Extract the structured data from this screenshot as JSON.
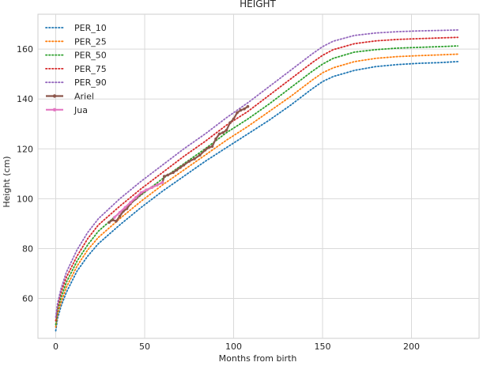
{
  "chart_data": {
    "type": "line",
    "title": "HEIGHT",
    "xlabel": "Months from birth",
    "ylabel": "Height (cm)",
    "xlim": [
      -10,
      238
    ],
    "ylim": [
      44,
      174
    ],
    "xticks": [
      0,
      50,
      100,
      150,
      200
    ],
    "yticks": [
      60,
      80,
      100,
      120,
      140,
      160
    ],
    "xtick_labels": [
      "0",
      "50",
      "100",
      "150",
      "200"
    ],
    "ytick_labels": [
      "60",
      "80",
      "100",
      "120",
      "140",
      "160"
    ],
    "grid": true,
    "legend_position": "upper-left",
    "series": [
      {
        "name": "PER_10",
        "color": "#1f77b4",
        "style": "dotted",
        "x": [
          0,
          1,
          3,
          6,
          12,
          18,
          24,
          36,
          48,
          60,
          72,
          84,
          96,
          108,
          120,
          132,
          144,
          150,
          156,
          168,
          180,
          192,
          204,
          216,
          226
        ],
        "y": [
          47,
          52,
          57,
          62.5,
          71,
          77,
          82,
          89.5,
          96.5,
          103,
          109,
          115,
          120.5,
          126,
          131.5,
          137.5,
          144,
          147,
          149,
          151.5,
          153,
          153.8,
          154.3,
          154.6,
          155
        ]
      },
      {
        "name": "PER_25",
        "color": "#ff7f0e",
        "style": "dotted",
        "x": [
          0,
          1,
          3,
          6,
          12,
          18,
          24,
          36,
          48,
          60,
          72,
          84,
          96,
          108,
          120,
          132,
          144,
          150,
          156,
          168,
          180,
          192,
          204,
          216,
          226
        ],
        "y": [
          48.5,
          53.5,
          58.5,
          64.5,
          73,
          79.5,
          84.5,
          92,
          99,
          105.5,
          111.5,
          117.5,
          123.5,
          129,
          135,
          141,
          147.5,
          150.5,
          152.5,
          155,
          156.3,
          157,
          157.4,
          157.7,
          158
        ]
      },
      {
        "name": "PER_50",
        "color": "#2ca02c",
        "style": "dotted",
        "x": [
          0,
          1,
          3,
          6,
          12,
          18,
          24,
          36,
          48,
          60,
          72,
          84,
          96,
          108,
          120,
          132,
          144,
          150,
          156,
          168,
          180,
          192,
          204,
          216,
          226
        ],
        "y": [
          49.5,
          55,
          60.5,
          66.5,
          75,
          81.5,
          87,
          94.5,
          101.5,
          108,
          114,
          120,
          126.5,
          132,
          138,
          144.5,
          151,
          154,
          156.3,
          158.8,
          159.8,
          160.4,
          160.7,
          161,
          161.3
        ]
      },
      {
        "name": "PER_75",
        "color": "#d62728",
        "style": "dotted",
        "x": [
          0,
          1,
          3,
          6,
          12,
          18,
          24,
          36,
          48,
          60,
          72,
          84,
          96,
          108,
          120,
          132,
          144,
          150,
          156,
          168,
          180,
          192,
          204,
          216,
          226
        ],
        "y": [
          51,
          56.5,
          62.5,
          68.5,
          77,
          84,
          89.5,
          97,
          104,
          110.5,
          117,
          123,
          129.5,
          135,
          141.5,
          148,
          154.5,
          157.5,
          159.8,
          162.2,
          163.3,
          163.9,
          164.2,
          164.5,
          164.7
        ]
      },
      {
        "name": "PER_90",
        "color": "#9467bd",
        "style": "dotted",
        "x": [
          0,
          1,
          3,
          6,
          12,
          18,
          24,
          36,
          48,
          60,
          72,
          84,
          96,
          108,
          120,
          132,
          144,
          150,
          156,
          168,
          180,
          192,
          204,
          216,
          226
        ],
        "y": [
          52.5,
          58,
          64,
          70.5,
          79.5,
          86.5,
          92,
          100,
          107,
          113.5,
          120,
          126,
          132.5,
          138.5,
          145,
          151.5,
          158,
          161,
          163.2,
          165.5,
          166.5,
          167,
          167.3,
          167.5,
          167.7
        ]
      },
      {
        "name": "Ariel",
        "color": "#8c564b",
        "style": "solid-marker",
        "x": [
          30,
          32,
          34,
          36,
          38,
          40,
          42,
          45,
          48,
          51,
          54,
          57,
          60,
          61,
          63,
          66,
          68,
          70,
          72,
          75,
          78,
          81,
          84,
          86,
          88,
          90,
          92,
          94,
          96,
          98,
          100,
          102,
          104,
          106,
          108
        ],
        "y": [
          90.5,
          91.5,
          91,
          93,
          95,
          96,
          98,
          100,
          102,
          103.5,
          104.5,
          105.5,
          106.5,
          109,
          109.5,
          110.5,
          111.5,
          112.5,
          113.5,
          115,
          116,
          117.5,
          119.5,
          120.5,
          121,
          124,
          126,
          126.5,
          127.5,
          130.5,
          132,
          134.5,
          135.5,
          136,
          137
        ]
      },
      {
        "name": "Jua",
        "color": "#e377c2",
        "style": "solid-marker",
        "x": [
          33,
          36,
          39,
          42,
          45,
          48,
          51,
          54,
          57,
          60
        ],
        "y": [
          92.5,
          94.5,
          96.5,
          98.5,
          100.5,
          102.5,
          103.5,
          104.5,
          105.5,
          106.5
        ]
      }
    ]
  }
}
